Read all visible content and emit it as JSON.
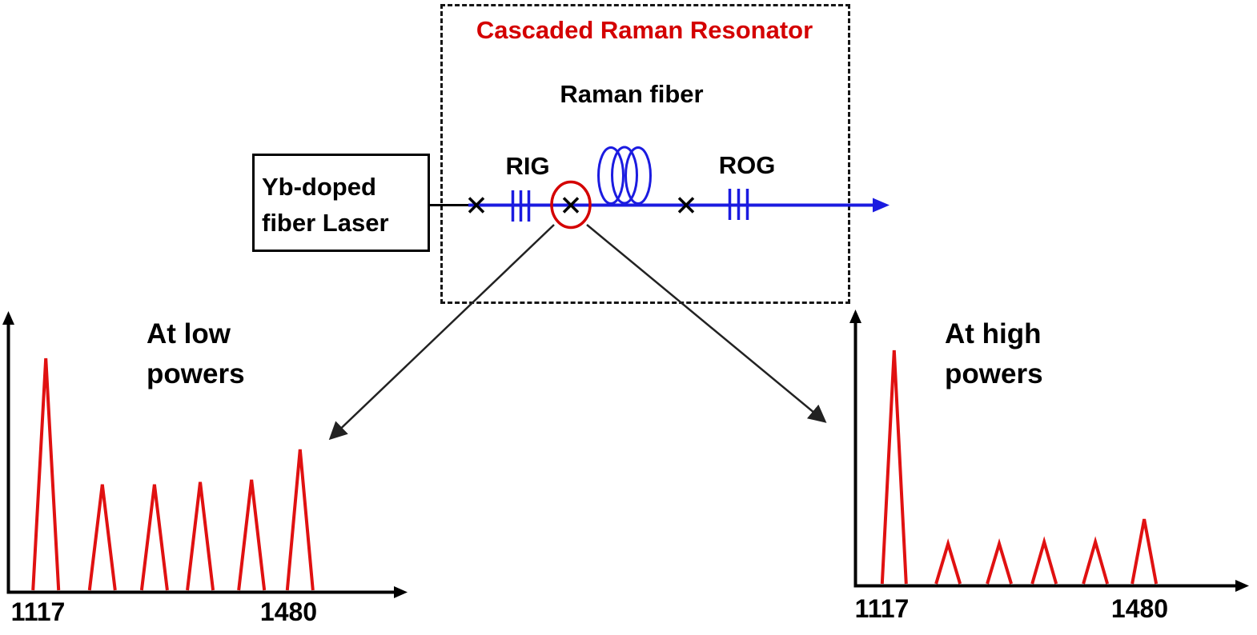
{
  "colors": {
    "title_red": "#d40000",
    "spectrum_red": "#e01111",
    "fiber_blue": "#1b1be0",
    "ink_black": "#000000",
    "callout_gray": "#222222"
  },
  "resonator": {
    "title": "Cascaded Raman Resonator",
    "fiber_label": "Raman fiber",
    "input_grating_label": "RIG",
    "output_grating_label": "ROG"
  },
  "laser": {
    "label": "Yb-doped\nfiber Laser"
  },
  "chart_data": [
    {
      "id": "low_powers",
      "type": "line",
      "title": "At low\npowers",
      "x_tick_labels": [
        "1117",
        "1480"
      ],
      "x_tick_values": [
        1117,
        1480
      ],
      "xlabel": "",
      "ylabel": "",
      "peaks": [
        {
          "pos_frac": 0.095,
          "height_rel": 1.0
        },
        {
          "pos_frac": 0.237,
          "height_rel": 0.46
        },
        {
          "pos_frac": 0.368,
          "height_rel": 0.46
        },
        {
          "pos_frac": 0.483,
          "height_rel": 0.47
        },
        {
          "pos_frac": 0.612,
          "height_rel": 0.48
        },
        {
          "pos_frac": 0.734,
          "height_rel": 0.61
        }
      ]
    },
    {
      "id": "high_powers",
      "type": "line",
      "title": "At high\npowers",
      "x_tick_labels": [
        "1117",
        "1480"
      ],
      "x_tick_values": [
        1117,
        1480
      ],
      "xlabel": "",
      "ylabel": "",
      "peaks": [
        {
          "pos_frac": 0.1,
          "height_rel": 1.0
        },
        {
          "pos_frac": 0.238,
          "height_rel": 0.177
        },
        {
          "pos_frac": 0.369,
          "height_rel": 0.177
        },
        {
          "pos_frac": 0.484,
          "height_rel": 0.185
        },
        {
          "pos_frac": 0.615,
          "height_rel": 0.185
        },
        {
          "pos_frac": 0.74,
          "height_rel": 0.282
        }
      ]
    }
  ]
}
